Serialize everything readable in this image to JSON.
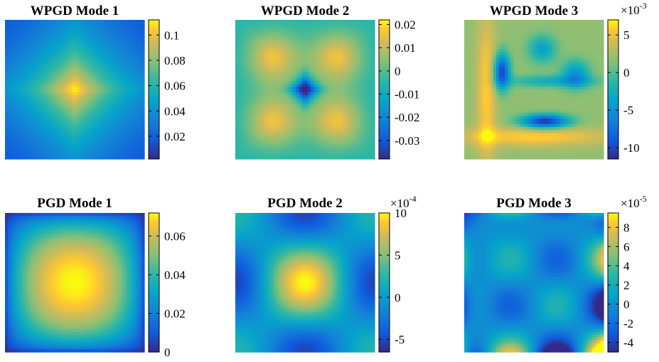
{
  "chart_data": [
    {
      "type": "heatmap",
      "title": "WPGD Mode 1",
      "colorbar": {
        "ticks": [
          "0.1",
          "0.08",
          "0.06",
          "0.04",
          "0.02"
        ],
        "tick_values": [
          0.1,
          0.08,
          0.06,
          0.04,
          0.02
        ],
        "range": [
          0.002,
          0.112
        ],
        "multiplier": ""
      },
      "pattern": "central peak, diamond shaped",
      "colormap": "parula"
    },
    {
      "type": "heatmap",
      "title": "WPGD Mode 2",
      "colorbar": {
        "ticks": [
          "0.02",
          "0.01",
          "0",
          "-0.01",
          "-0.02",
          "-0.03"
        ],
        "tick_values": [
          0.02,
          0.01,
          0,
          -0.01,
          -0.02,
          -0.03
        ],
        "range": [
          -0.038,
          0.022
        ],
        "multiplier": ""
      },
      "pattern": "central minimum surrounded by ring of positive values",
      "colormap": "parula"
    },
    {
      "type": "heatmap",
      "title": "WPGD Mode 3",
      "colorbar": {
        "ticks": [
          "5",
          "0",
          "-5",
          "-10"
        ],
        "tick_values": [
          5,
          0,
          -5,
          -10
        ],
        "range": [
          -11.5,
          7
        ],
        "multiplier": "×10",
        "exponent": "-3"
      },
      "pattern": "asymmetric; bright bands along left and bottom, minima at upper-left, lower-middle and right",
      "colormap": "parula"
    },
    {
      "type": "heatmap",
      "title": "PGD Mode 1",
      "colorbar": {
        "ticks": [
          "0.06",
          "0.04",
          "0.02",
          "0"
        ],
        "tick_values": [
          0.06,
          0.04,
          0.02,
          0
        ],
        "range": [
          0,
          0.072
        ],
        "multiplier": ""
      },
      "pattern": "smooth broad central peak",
      "colormap": "parula"
    },
    {
      "type": "heatmap",
      "title": "PGD Mode 2",
      "colorbar": {
        "ticks": [
          "10",
          "5",
          "0",
          "-5"
        ],
        "tick_values": [
          10,
          5,
          0,
          -5
        ],
        "range": [
          -6.5,
          10
        ],
        "multiplier": "×10",
        "exponent": "-4"
      },
      "pattern": "maxima at corners, minima at edge midpoints",
      "colormap": "parula"
    },
    {
      "type": "heatmap",
      "title": "PGD Mode 3",
      "colorbar": {
        "ticks": [
          "8",
          "6",
          "4",
          "2",
          "0",
          "-2",
          "-4"
        ],
        "tick_values": [
          8,
          6,
          4,
          2,
          0,
          -2,
          -4
        ],
        "range": [
          -5,
          9.5
        ],
        "multiplier": "×10",
        "exponent": "-5"
      },
      "pattern": "oscillating pattern with extrema along borders",
      "colormap": "parula"
    }
  ]
}
